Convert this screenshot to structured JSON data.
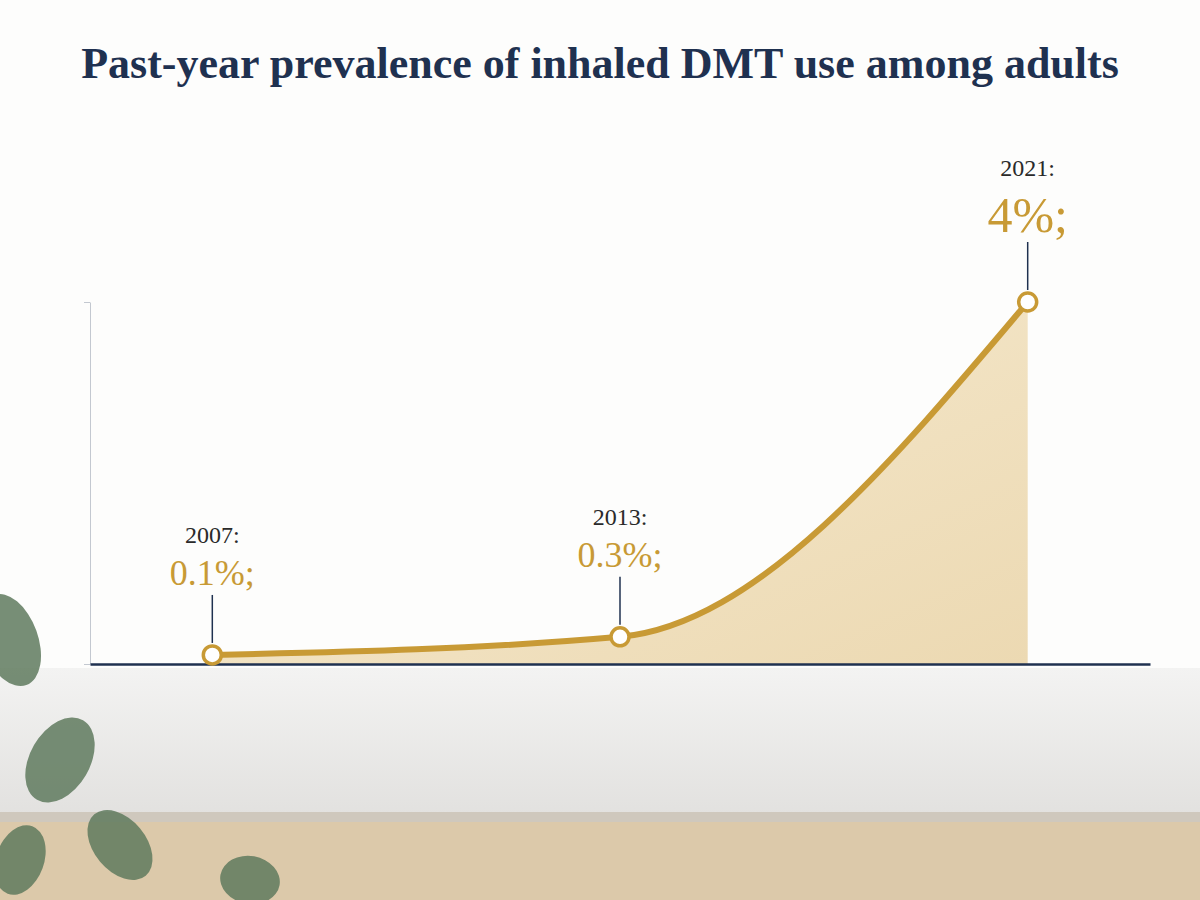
{
  "chart_data": {
    "type": "line",
    "title": "Past-year prevalence of inhaled DMT use among adults",
    "categories": [
      "2007:",
      "2013:",
      "2021:"
    ],
    "values": [
      0.1,
      0.3,
      4
    ],
    "value_labels": [
      "0.1%;",
      "0.3%;",
      "4%;"
    ],
    "ylim": [
      0,
      4
    ],
    "yticks": [
      0,
      4
    ],
    "tick_labels": false,
    "data_labels": true,
    "color": "#c89a35",
    "marker": "circle",
    "grid": false
  }
}
